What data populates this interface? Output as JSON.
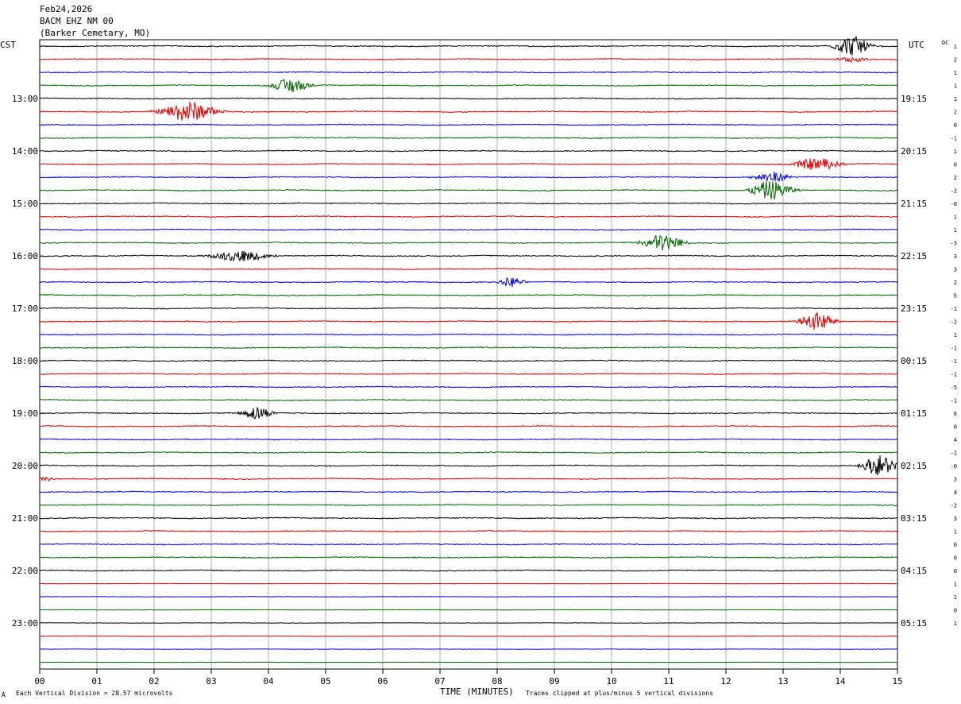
{
  "header": {
    "date": "Feb24,2026",
    "station": "BACM EHZ NM 00",
    "location": "(Barker Cemetary, MO)",
    "left_zone": "CST",
    "right_zone": "UTC",
    "dc_label": "DC"
  },
  "footer": {
    "scale_note": "Each Vertical Division =   28.57 microvolts",
    "clip_note": "Traces clipped at plus/minus 5 vertical divisions",
    "corner_mark": "A"
  },
  "chart_data": {
    "type": "line",
    "title": "",
    "xlabel": "TIME (MINUTES)",
    "ylabel": "",
    "xlim": [
      0,
      15
    ],
    "x_ticks": [
      "00",
      "01",
      "02",
      "03",
      "04",
      "05",
      "06",
      "07",
      "08",
      "09",
      "10",
      "11",
      "12",
      "13",
      "14",
      "15"
    ],
    "grid": true,
    "trace_colors": [
      "#000000",
      "#e00000",
      "#0000e0",
      "#006600"
    ],
    "trace_count": 48,
    "left_hour_labels": [
      "13:00",
      "14:00",
      "15:00",
      "16:00",
      "17:00",
      "18:00",
      "19:00",
      "20:00",
      "21:00",
      "22:00",
      "23:00"
    ],
    "right_hour_labels": [
      "19:15",
      "20:15",
      "21:15",
      "22:15",
      "23:15",
      "00:15",
      "01:15",
      "02:15",
      "03:15",
      "04:15",
      "05:15"
    ],
    "first_hour_label_trace": 4,
    "dc_offsets": [
      "1",
      "2",
      "1",
      "1",
      "1",
      "2",
      "0",
      "-1",
      "1",
      "0",
      "2",
      "-2",
      "-0",
      "1",
      "1",
      "-3",
      "3",
      "3",
      "2",
      "5",
      "-1",
      "-2",
      "1",
      "-1",
      "-1",
      "-1",
      "-5",
      "-1",
      "6",
      "0",
      "4",
      "-1",
      "-0",
      "3",
      "4",
      "-2",
      "3",
      "1",
      "0",
      "0",
      "0",
      "1",
      "1",
      "0",
      "1"
    ],
    "events": [
      {
        "trace": 0,
        "minute": 14.2,
        "amplitude": 4.0,
        "duration_min": 0.6
      },
      {
        "trace": 1,
        "minute": 14.2,
        "amplitude": 1.2,
        "duration_min": 0.5
      },
      {
        "trace": 3,
        "minute": 4.4,
        "amplitude": 3.0,
        "duration_min": 0.6
      },
      {
        "trace": 5,
        "minute": 2.6,
        "amplitude": 4.0,
        "duration_min": 0.9
      },
      {
        "trace": 9,
        "minute": 13.6,
        "amplitude": 2.5,
        "duration_min": 0.8
      },
      {
        "trace": 10,
        "minute": 12.8,
        "amplitude": 2.2,
        "duration_min": 0.6
      },
      {
        "trace": 11,
        "minute": 12.8,
        "amplitude": 3.8,
        "duration_min": 0.7
      },
      {
        "trace": 15,
        "minute": 10.9,
        "amplitude": 3.5,
        "duration_min": 0.7
      },
      {
        "trace": 16,
        "minute": 3.5,
        "amplitude": 2.2,
        "duration_min": 1.0
      },
      {
        "trace": 18,
        "minute": 8.25,
        "amplitude": 2.0,
        "duration_min": 0.4
      },
      {
        "trace": 21,
        "minute": 13.6,
        "amplitude": 3.8,
        "duration_min": 0.6
      },
      {
        "trace": 28,
        "minute": 3.8,
        "amplitude": 2.8,
        "duration_min": 0.5
      },
      {
        "trace": 32,
        "minute": 14.7,
        "amplitude": 4.0,
        "duration_min": 0.6
      },
      {
        "trace": 33,
        "minute": 0.1,
        "amplitude": 0.8,
        "duration_min": 0.3
      }
    ]
  }
}
